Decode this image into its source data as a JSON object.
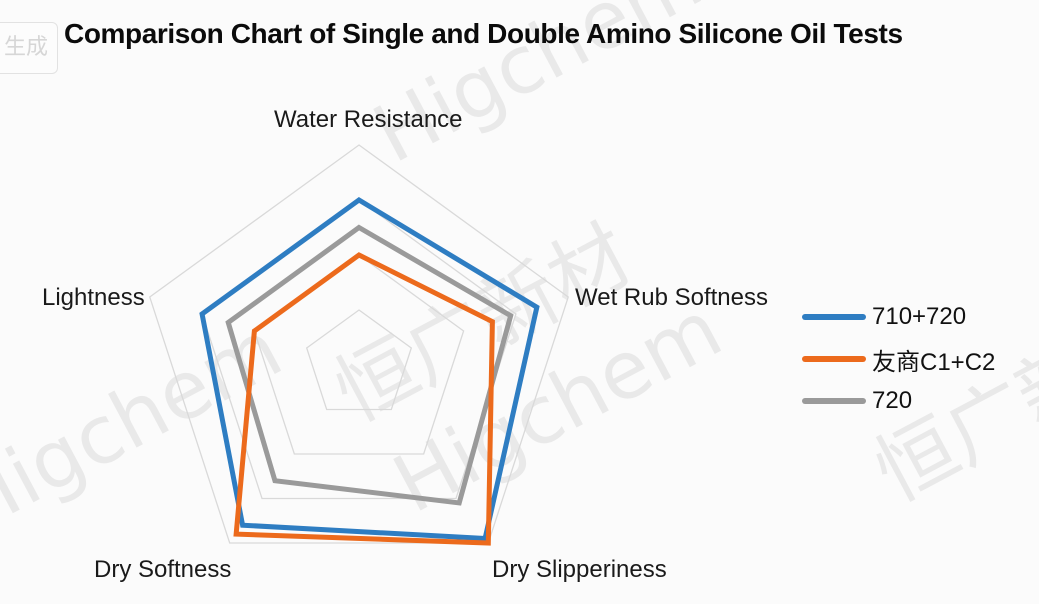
{
  "title": "Comparison Chart of Single and Double Amino Silicone Oil Tests",
  "badge_text": "生成",
  "watermarks": [
    "Higchem",
    "恒广新材",
    "Higchem",
    "恒广新材",
    "Higchem"
  ],
  "colors": {
    "grid": "#d9d9d9",
    "series1": "#2e7dc2",
    "series2": "#ec6a1c",
    "series3": "#9a9a9a"
  },
  "chart_data": {
    "type": "radar",
    "title": "Comparison Chart of Single and Double Amino Silicone Oil Tests",
    "categories": [
      "Water Resistance",
      "Wet Rub Softness",
      "Dry Slipperiness",
      "Dry Softness",
      "Lightness"
    ],
    "range": [
      0,
      4
    ],
    "rings": 4,
    "grid": true,
    "legend_position": "right",
    "series": [
      {
        "name": "710+720",
        "color": "#2e7dc2",
        "values": [
          3.0,
          3.4,
          3.9,
          3.6,
          3.0
        ]
      },
      {
        "name": "友商C1+C2",
        "color": "#ec6a1c",
        "values": [
          2.0,
          2.55,
          4.0,
          3.8,
          2.0
        ]
      },
      {
        "name": "720",
        "color": "#9a9a9a",
        "values": [
          2.5,
          2.9,
          3.1,
          2.6,
          2.5
        ]
      }
    ]
  }
}
